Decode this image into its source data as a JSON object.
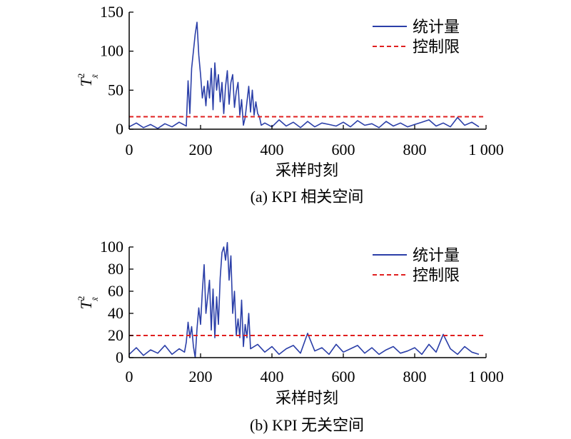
{
  "chart_data": [
    {
      "type": "line",
      "panel_caption": "(a) KPI 相关空间",
      "xlabel": "采样时刻",
      "ylabel": {
        "main": "T",
        "sup": "2",
        "sub": "x̃"
      },
      "xlim": [
        0,
        1000
      ],
      "ylim": [
        0,
        150
      ],
      "xticks": [
        "0",
        "200",
        "400",
        "600",
        "800",
        "1 000"
      ],
      "yticks": [
        "0",
        "50",
        "100",
        "150"
      ],
      "legend_position": "top-right",
      "series": [
        {
          "name": "统计量",
          "color": "#2b3fa8",
          "style": "solid",
          "x": [
            0,
            20,
            40,
            60,
            80,
            100,
            120,
            140,
            160,
            165,
            170,
            175,
            180,
            185,
            190,
            195,
            200,
            205,
            210,
            215,
            220,
            225,
            230,
            235,
            240,
            245,
            250,
            255,
            260,
            265,
            270,
            275,
            280,
            285,
            290,
            295,
            300,
            305,
            310,
            315,
            320,
            325,
            330,
            335,
            340,
            345,
            350,
            355,
            360,
            365,
            370,
            380,
            400,
            420,
            440,
            460,
            480,
            500,
            520,
            540,
            560,
            580,
            600,
            620,
            640,
            660,
            680,
            700,
            720,
            740,
            760,
            780,
            800,
            820,
            840,
            860,
            880,
            900,
            920,
            940,
            960,
            980
          ],
          "y": [
            3,
            8,
            2,
            6,
            1,
            7,
            3,
            9,
            4,
            62,
            20,
            78,
            100,
            122,
            137,
            95,
            70,
            40,
            55,
            30,
            62,
            40,
            78,
            25,
            85,
            50,
            70,
            35,
            60,
            20,
            55,
            75,
            32,
            60,
            70,
            28,
            48,
            60,
            18,
            38,
            5,
            15,
            35,
            55,
            22,
            50,
            18,
            35,
            20,
            16,
            5,
            8,
            3,
            12,
            4,
            9,
            2,
            10,
            3,
            8,
            6,
            4,
            9,
            3,
            11,
            5,
            7,
            2,
            10,
            4,
            8,
            3,
            6,
            9,
            12,
            4,
            8,
            3,
            15,
            5,
            9,
            3
          ]
        },
        {
          "name": "控制限",
          "color": "#e02020",
          "style": "dashed",
          "x": [
            0,
            1000
          ],
          "y": [
            16,
            16
          ]
        }
      ]
    },
    {
      "type": "line",
      "panel_caption": "(b) KPI 无关空间",
      "xlabel": "采样时刻",
      "ylabel": {
        "main": "T",
        "sup": "2",
        "sub": "x̃"
      },
      "xlim": [
        0,
        1000
      ],
      "ylim": [
        0,
        100
      ],
      "xticks": [
        "0",
        "200",
        "400",
        "600",
        "800",
        "1 000"
      ],
      "yticks": [
        "0",
        "20",
        "40",
        "60",
        "80",
        "100"
      ],
      "legend_position": "top-right",
      "series": [
        {
          "name": "统计量",
          "color": "#2b3fa8",
          "style": "solid",
          "x": [
            0,
            20,
            40,
            60,
            80,
            100,
            120,
            140,
            155,
            160,
            165,
            170,
            175,
            180,
            185,
            190,
            195,
            200,
            205,
            210,
            215,
            220,
            225,
            230,
            235,
            240,
            245,
            250,
            255,
            260,
            265,
            270,
            275,
            280,
            285,
            290,
            295,
            300,
            305,
            310,
            315,
            320,
            325,
            330,
            335,
            340,
            360,
            380,
            400,
            420,
            440,
            460,
            480,
            500,
            520,
            540,
            560,
            580,
            600,
            620,
            640,
            660,
            680,
            700,
            720,
            740,
            760,
            780,
            800,
            820,
            840,
            860,
            880,
            900,
            920,
            940,
            960,
            980
          ],
          "y": [
            3,
            9,
            2,
            7,
            4,
            11,
            3,
            8,
            5,
            14,
            32,
            18,
            28,
            10,
            0,
            26,
            45,
            30,
            60,
            84,
            40,
            55,
            70,
            25,
            62,
            18,
            55,
            30,
            72,
            95,
            100,
            88,
            104,
            70,
            92,
            40,
            60,
            20,
            35,
            18,
            52,
            10,
            30,
            18,
            40,
            8,
            12,
            5,
            10,
            3,
            8,
            11,
            4,
            22,
            6,
            9,
            3,
            12,
            5,
            8,
            11,
            4,
            9,
            3,
            7,
            10,
            4,
            6,
            9,
            3,
            12,
            5,
            21,
            8,
            3,
            10,
            5,
            3
          ]
        },
        {
          "name": "控制限",
          "color": "#e02020",
          "style": "dashed",
          "x": [
            0,
            1000
          ],
          "y": [
            20,
            20
          ]
        }
      ]
    }
  ]
}
